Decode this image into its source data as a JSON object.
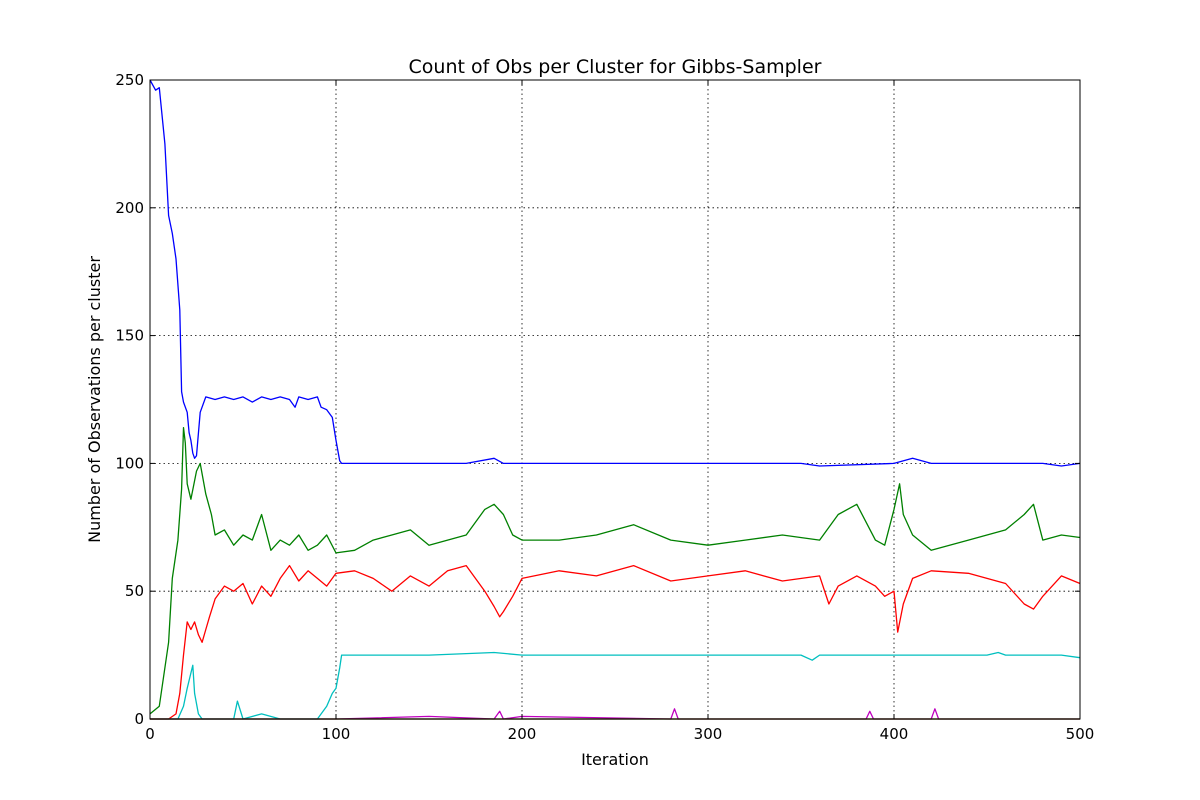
{
  "chart_data": {
    "type": "line",
    "title": "Count of Obs per Cluster for Gibbs-Sampler",
    "xlabel": "Iteration",
    "ylabel": "Number of Observations per cluster",
    "xlim": [
      0,
      500
    ],
    "ylim": [
      0,
      250
    ],
    "xticks": [
      0,
      100,
      200,
      300,
      400,
      500
    ],
    "yticks": [
      0,
      50,
      100,
      150,
      200,
      250
    ],
    "grid": true,
    "series": [
      {
        "color": "#0000ff",
        "x": [
          0,
          3,
          5,
          8,
          10,
          12,
          14,
          16,
          17,
          18,
          20,
          21,
          22,
          23,
          24,
          25,
          27,
          30,
          35,
          40,
          45,
          50,
          55,
          60,
          65,
          70,
          75,
          78,
          80,
          85,
          90,
          92,
          95,
          98,
          100,
          102,
          103,
          110,
          130,
          150,
          170,
          185,
          190,
          200,
          250,
          300,
          350,
          360,
          400,
          410,
          420,
          450,
          480,
          490,
          500
        ],
        "y": [
          250,
          246,
          247,
          225,
          197,
          190,
          180,
          160,
          128,
          124,
          120,
          112,
          109,
          104,
          102,
          103,
          120,
          126,
          125,
          126,
          125,
          126,
          124,
          126,
          125,
          126,
          125,
          122,
          126,
          125,
          126,
          122,
          121,
          118,
          109,
          101,
          100,
          100,
          100,
          100,
          100,
          102,
          100,
          100,
          100,
          100,
          100,
          99,
          100,
          102,
          100,
          100,
          100,
          99,
          100
        ]
      },
      {
        "color": "#008000",
        "x": [
          0,
          5,
          10,
          12,
          15,
          17,
          18,
          19,
          20,
          22,
          25,
          27,
          30,
          33,
          35,
          40,
          45,
          50,
          55,
          60,
          65,
          70,
          75,
          80,
          85,
          90,
          95,
          100,
          110,
          120,
          130,
          140,
          150,
          160,
          170,
          180,
          185,
          190,
          195,
          200,
          220,
          240,
          260,
          280,
          300,
          320,
          340,
          360,
          370,
          380,
          390,
          395,
          400,
          403,
          405,
          410,
          420,
          440,
          450,
          460,
          470,
          475,
          480,
          490,
          500
        ],
        "y": [
          2,
          5,
          30,
          55,
          70,
          90,
          114,
          108,
          92,
          86,
          97,
          100,
          88,
          80,
          72,
          74,
          68,
          72,
          70,
          80,
          66,
          70,
          68,
          72,
          66,
          68,
          72,
          65,
          66,
          70,
          72,
          74,
          68,
          70,
          72,
          82,
          84,
          80,
          72,
          70,
          70,
          72,
          76,
          70,
          68,
          70,
          72,
          70,
          80,
          84,
          70,
          68,
          82,
          92,
          80,
          72,
          66,
          70,
          72,
          74,
          80,
          84,
          70,
          72,
          71
        ]
      },
      {
        "color": "#ff0000",
        "x": [
          0,
          10,
          14,
          16,
          18,
          20,
          22,
          24,
          26,
          28,
          30,
          32,
          35,
          40,
          45,
          50,
          55,
          60,
          65,
          70,
          75,
          80,
          85,
          90,
          95,
          100,
          110,
          120,
          130,
          140,
          150,
          160,
          170,
          180,
          185,
          188,
          190,
          195,
          200,
          220,
          240,
          260,
          280,
          300,
          320,
          340,
          360,
          365,
          370,
          380,
          390,
          395,
          400,
          402,
          405,
          410,
          420,
          440,
          450,
          460,
          470,
          475,
          480,
          490,
          500
        ],
        "y": [
          0,
          0,
          2,
          10,
          25,
          38,
          35,
          38,
          33,
          30,
          35,
          40,
          47,
          52,
          50,
          53,
          45,
          52,
          48,
          55,
          60,
          54,
          58,
          55,
          52,
          57,
          58,
          55,
          50,
          56,
          52,
          58,
          60,
          50,
          44,
          40,
          42,
          48,
          55,
          58,
          56,
          60,
          54,
          56,
          58,
          54,
          56,
          45,
          52,
          56,
          52,
          48,
          50,
          34,
          45,
          55,
          58,
          57,
          55,
          53,
          45,
          43,
          48,
          56,
          53
        ]
      },
      {
        "color": "#00bfbf",
        "x": [
          0,
          15,
          18,
          20,
          22,
          23,
          24,
          26,
          28,
          30,
          35,
          45,
          47,
          50,
          60,
          70,
          80,
          90,
          95,
          98,
          100,
          102,
          103,
          110,
          130,
          150,
          185,
          200,
          250,
          300,
          350,
          356,
          360,
          400,
          450,
          456,
          460,
          490,
          500
        ],
        "y": [
          0,
          0,
          5,
          12,
          18,
          21,
          10,
          2,
          0,
          0,
          0,
          0,
          7,
          0,
          2,
          0,
          0,
          0,
          5,
          10,
          12,
          20,
          25,
          25,
          25,
          25,
          26,
          25,
          25,
          25,
          25,
          23,
          25,
          25,
          25,
          26,
          25,
          25,
          24
        ]
      },
      {
        "color": "#bf00bf",
        "x": [
          0,
          100,
          150,
          185,
          188,
          190,
          200,
          280,
          282,
          284,
          300,
          385,
          387,
          389,
          420,
          422,
          424,
          500
        ],
        "y": [
          0,
          0,
          1,
          0,
          3,
          0,
          1,
          0,
          4,
          0,
          0,
          0,
          3,
          0,
          0,
          4,
          0,
          0
        ]
      },
      {
        "color": "#bfbf00",
        "x": [
          0,
          100,
          200,
          300,
          400,
          500
        ],
        "y": [
          0,
          0,
          0,
          0,
          0,
          0
        ]
      },
      {
        "color": "#000000",
        "x": [
          0,
          500
        ],
        "y": [
          0,
          0
        ]
      }
    ]
  }
}
